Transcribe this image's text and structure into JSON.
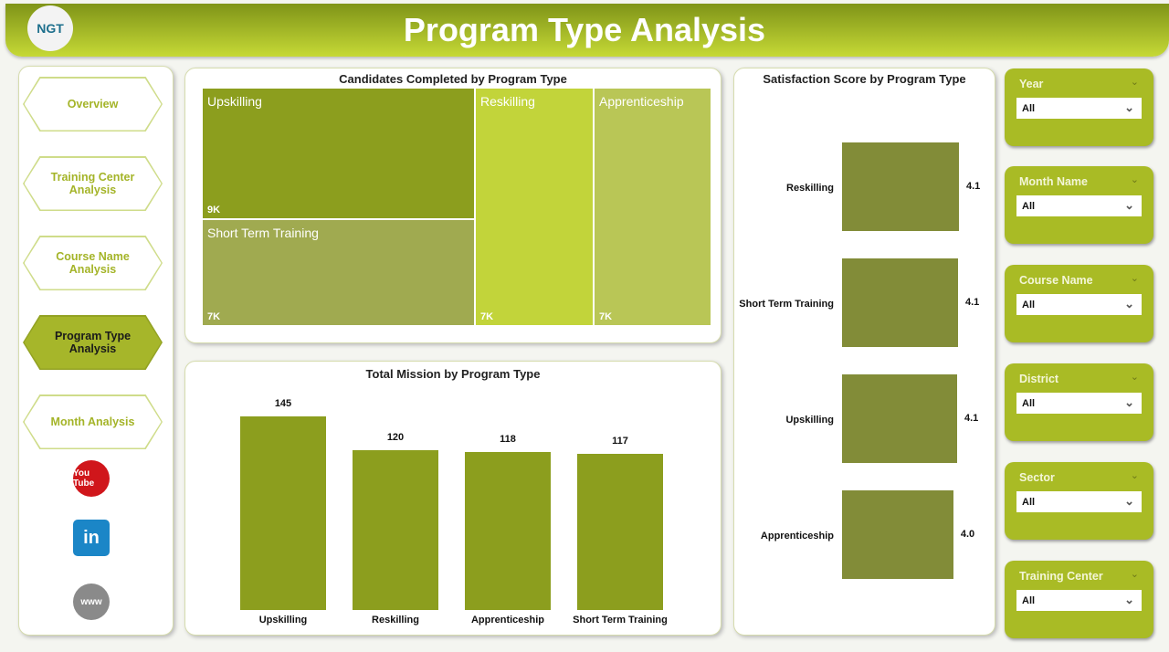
{
  "header": {
    "title": "Program Type Analysis",
    "logo_text": "NGT"
  },
  "nav": {
    "items": [
      {
        "label": "Overview"
      },
      {
        "label": "Training Center Analysis"
      },
      {
        "label": "Course Name Analysis"
      },
      {
        "label": "Program Type Analysis",
        "active": true
      },
      {
        "label": "Month Analysis"
      }
    ],
    "social": [
      {
        "icon": "youtube-icon",
        "label": "You Tube"
      },
      {
        "icon": "linkedin-icon",
        "label": "in"
      },
      {
        "icon": "globe-icon",
        "label": "www"
      }
    ]
  },
  "treemap": {
    "title": "Candidates Completed by Program Type",
    "tiles": [
      {
        "name": "Upskilling",
        "value": "9K"
      },
      {
        "name": "Short Term Training",
        "value": "7K"
      },
      {
        "name": "Reskilling",
        "value": "7K"
      },
      {
        "name": "Apprenticeship",
        "value": "7K"
      }
    ],
    "colors": [
      "#8c9e1e",
      "#a0aa50",
      "#c2d43a",
      "#b9c656"
    ]
  },
  "chart_data": [
    {
      "type": "bar",
      "title": "Total Mission by Program Type",
      "categories": [
        "Upskilling",
        "Reskilling",
        "Apprenticeship",
        "Short Term Training"
      ],
      "values": [
        145,
        120,
        118,
        117
      ],
      "color": "#8c9e1e"
    },
    {
      "type": "bar",
      "orientation": "horizontal",
      "title": "Satisfaction Score by Program Type",
      "categories": [
        "Reskilling",
        "Short Term Training",
        "Upskilling",
        "Apprenticeship"
      ],
      "values": [
        4.1,
        4.1,
        4.1,
        4.0
      ],
      "color": "#828c38"
    }
  ],
  "slicers": [
    {
      "label": "Year",
      "value": "All"
    },
    {
      "label": "Month Name",
      "value": "All"
    },
    {
      "label": "Course Name",
      "value": "All"
    },
    {
      "label": "District",
      "value": "All"
    },
    {
      "label": "Sector",
      "value": "All"
    },
    {
      "label": "Training Center",
      "value": "All"
    }
  ]
}
